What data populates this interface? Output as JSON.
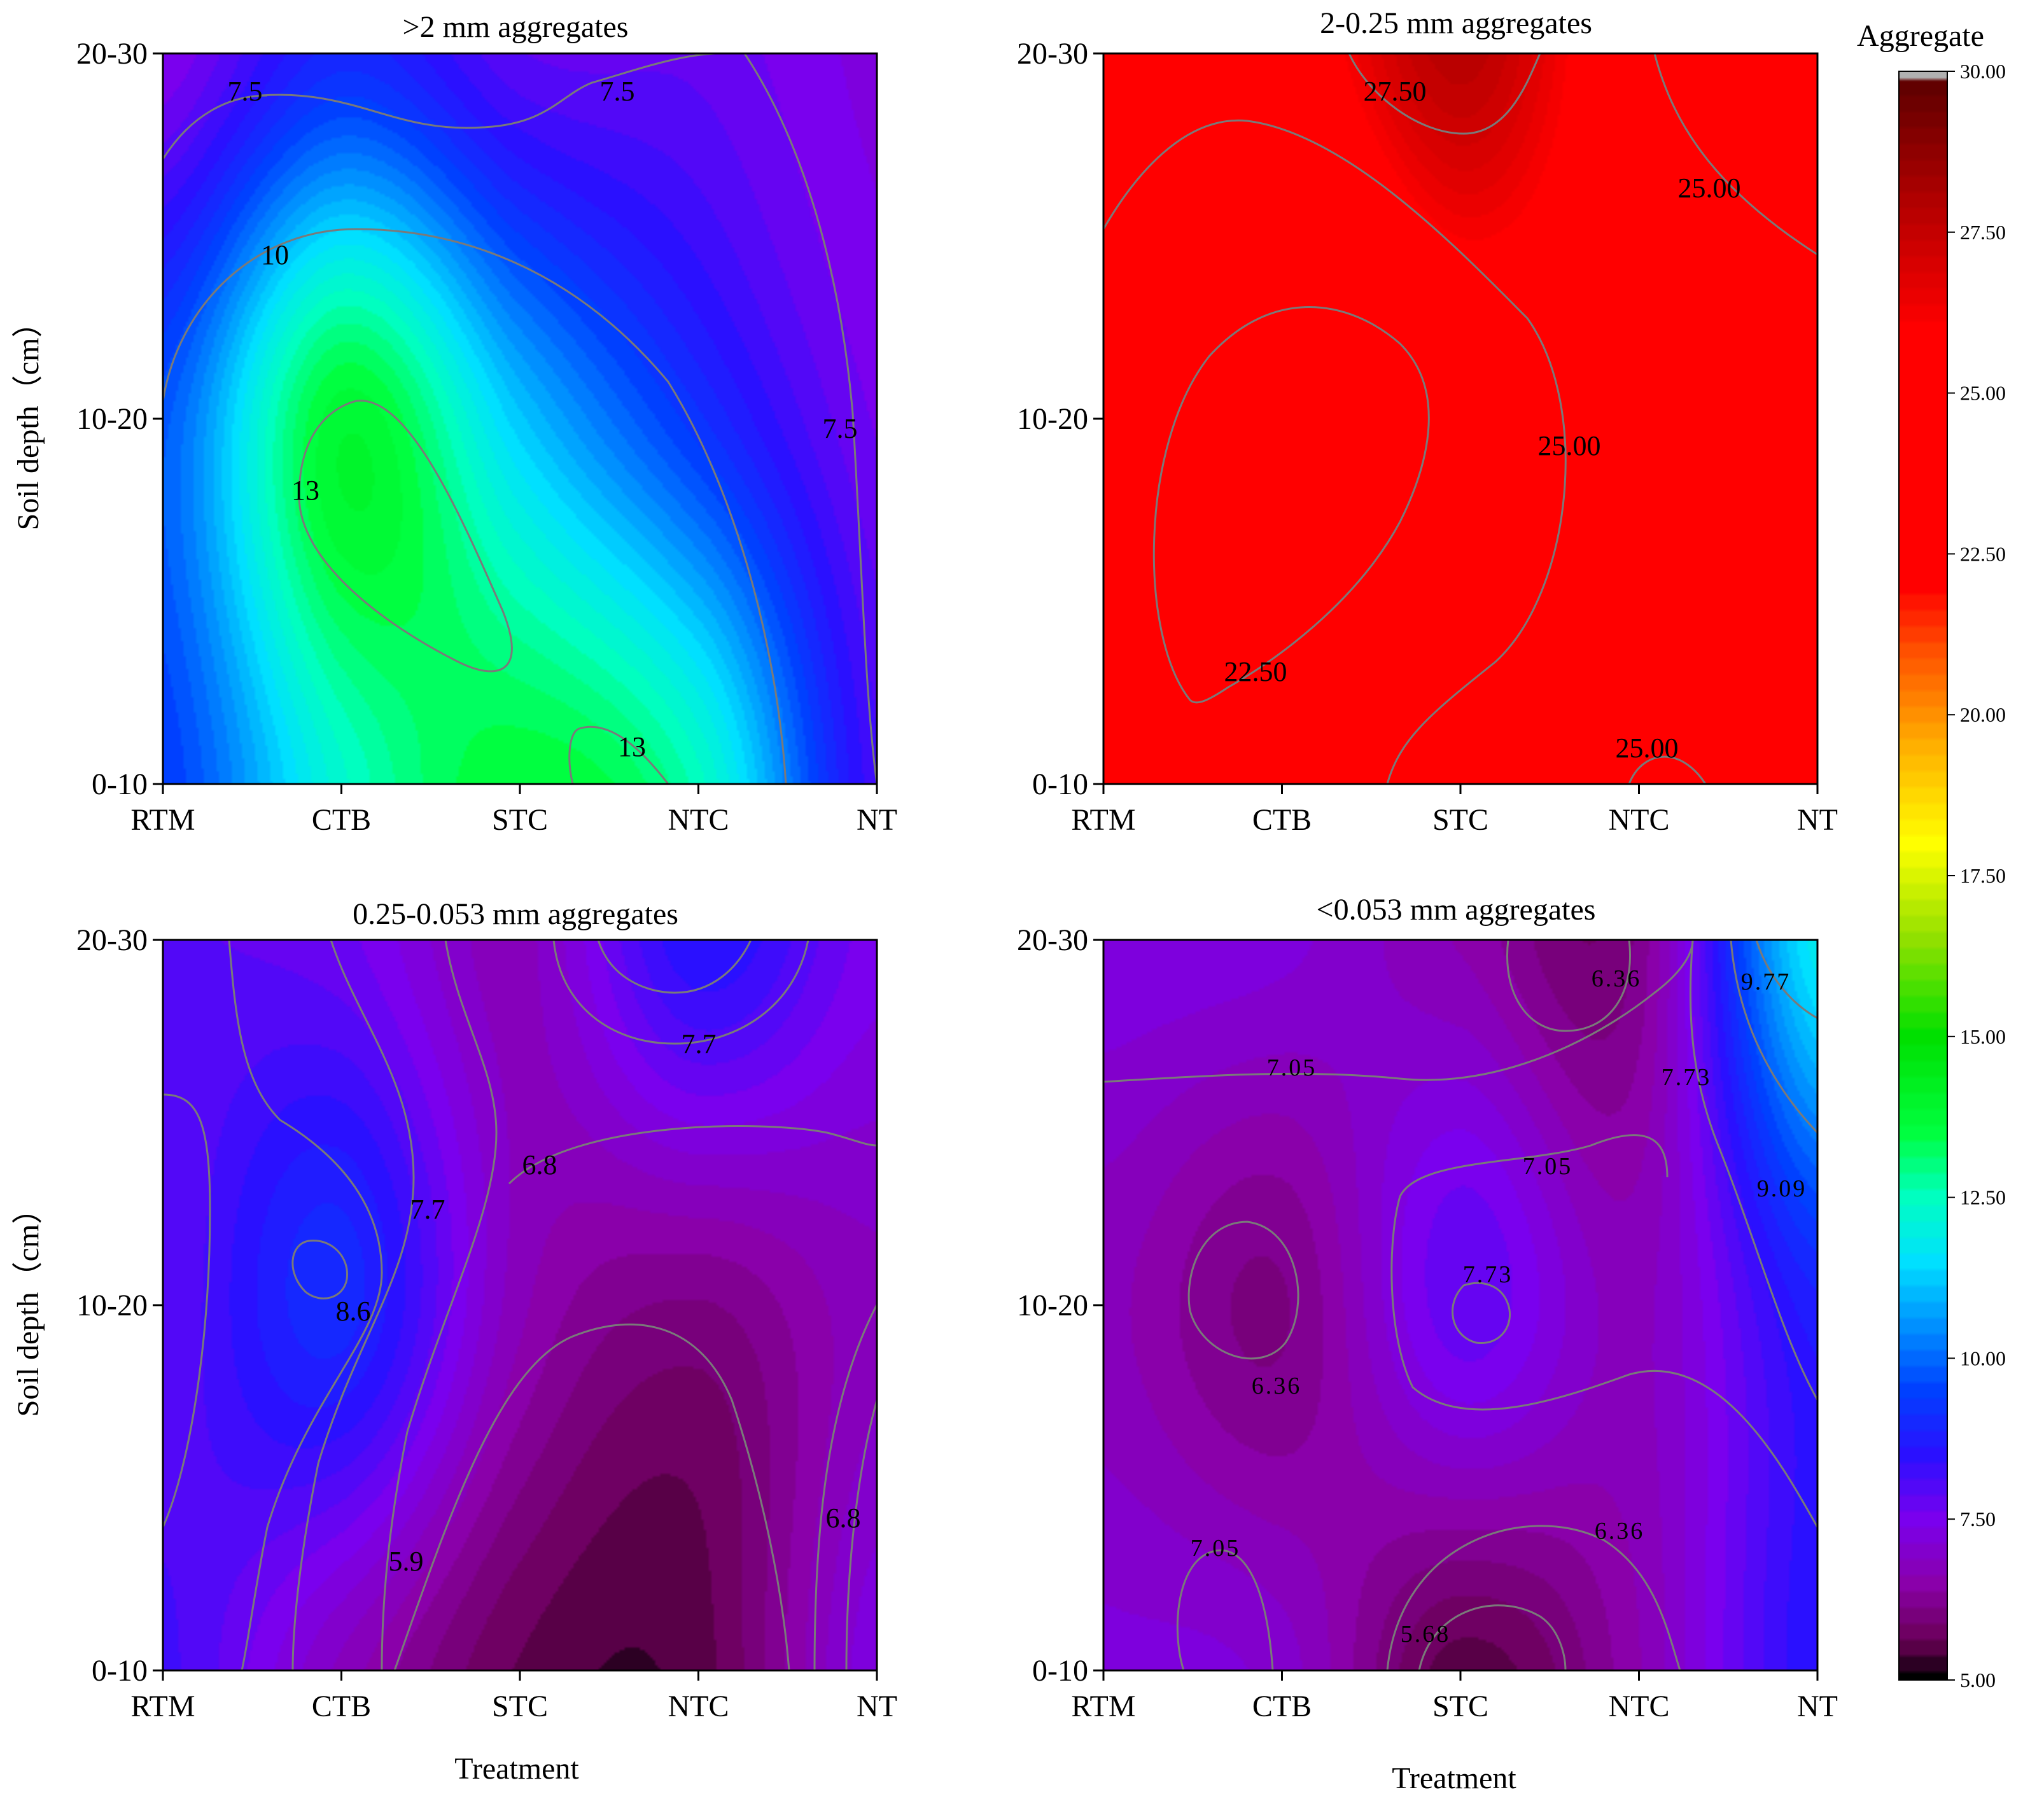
{
  "chart_data": {
    "type": "heatmap",
    "subtype": "filled-contour",
    "x_categories": [
      "RTM",
      "CTB",
      "STC",
      "NTC",
      "NT"
    ],
    "y_categories": [
      "0-10",
      "10-20",
      "20-30"
    ],
    "xlabel": "Treatment",
    "ylabel": "Soil depth（cm）",
    "colorbar": {
      "title": "Aggregate",
      "range": [
        5.0,
        30.0
      ],
      "ticks": [
        "30.00",
        "27.50",
        "25.00",
        "22.50",
        "20.00",
        "17.50",
        "15.00",
        "12.50",
        "10.00",
        "7.50",
        "5.00"
      ],
      "tick_values": [
        30,
        27.5,
        25,
        22.5,
        20,
        17.5,
        15,
        12.5,
        10,
        7.5,
        5
      ],
      "colormap": "black-purple-blue-cyan-green-yellow-red-darkred",
      "colors": [
        [
          5.0,
          "#000000"
        ],
        [
          5.6,
          "#6a0055"
        ],
        [
          6.5,
          "#8a00aa"
        ],
        [
          7.5,
          "#7a00ee"
        ],
        [
          8.5,
          "#2a10ff"
        ],
        [
          9.5,
          "#0040ff"
        ],
        [
          10.5,
          "#0090ff"
        ],
        [
          11.5,
          "#00e0ff"
        ],
        [
          12.5,
          "#00ffc0"
        ],
        [
          13.5,
          "#00ff40"
        ],
        [
          15.0,
          "#00e000"
        ],
        [
          16.5,
          "#90e000"
        ],
        [
          18.0,
          "#ffff00"
        ],
        [
          19.5,
          "#ffb000"
        ],
        [
          21.0,
          "#ff5000"
        ],
        [
          22.0,
          "#ff0000"
        ],
        [
          26.0,
          "#ff0000"
        ],
        [
          28.0,
          "#b00000"
        ],
        [
          29.8,
          "#600000"
        ],
        [
          30.0,
          "#b0b0b0"
        ]
      ]
    },
    "panels": [
      {
        "title": ">2 mm aggregates",
        "grid": [
          [
            9.4,
            12.3,
            13.6,
            12.5,
            8.2
          ],
          [
            9.8,
            13.8,
            11.2,
            9.2,
            7.6
          ],
          [
            7.4,
            9.0,
            7.9,
            7.8,
            7.3
          ]
        ],
        "contour_labels": [
          "7.5",
          "7.5",
          "10",
          "7.5",
          "13",
          "13"
        ]
      },
      {
        "title": "2-0.25 mm aggregates",
        "grid": [
          [
            23.8,
            23.4,
            23.9,
            24.3,
            24.8
          ],
          [
            23.7,
            22.2,
            24.4,
            24.8,
            25.4
          ],
          [
            24.5,
            25.1,
            27.8,
            24.9,
            25.0
          ]
        ],
        "contour_labels": [
          "27.50",
          "25.00",
          "25.00",
          "22.50",
          "25.00"
        ]
      },
      {
        "title": "0.25-0.053 mm aggregates",
        "grid": [
          [
            8.2,
            6.8,
            5.6,
            5.5,
            7.3
          ],
          [
            7.9,
            9.0,
            6.7,
            6.1,
            6.8
          ],
          [
            7.9,
            7.7,
            6.8,
            8.6,
            7.5
          ]
        ],
        "contour_labels": [
          "7.7",
          "6.8",
          "7.7",
          "8.6",
          "5.9",
          "6.8"
        ]
      },
      {
        "title": "<0.053 mm aggregates",
        "grid": [
          [
            7.2,
            7.0,
            5.5,
            6.6,
            8.6
          ],
          [
            6.7,
            6.1,
            7.8,
            6.8,
            8.8
          ],
          [
            7.3,
            7.2,
            6.6,
            6.2,
            11.8
          ]
        ],
        "contour_labels": [
          "6.36",
          "9.77",
          "7.05",
          "7.73",
          "7.05",
          "9.09",
          "7.73",
          "6.36",
          "7.05",
          "6.36",
          "5.68"
        ]
      }
    ]
  }
}
